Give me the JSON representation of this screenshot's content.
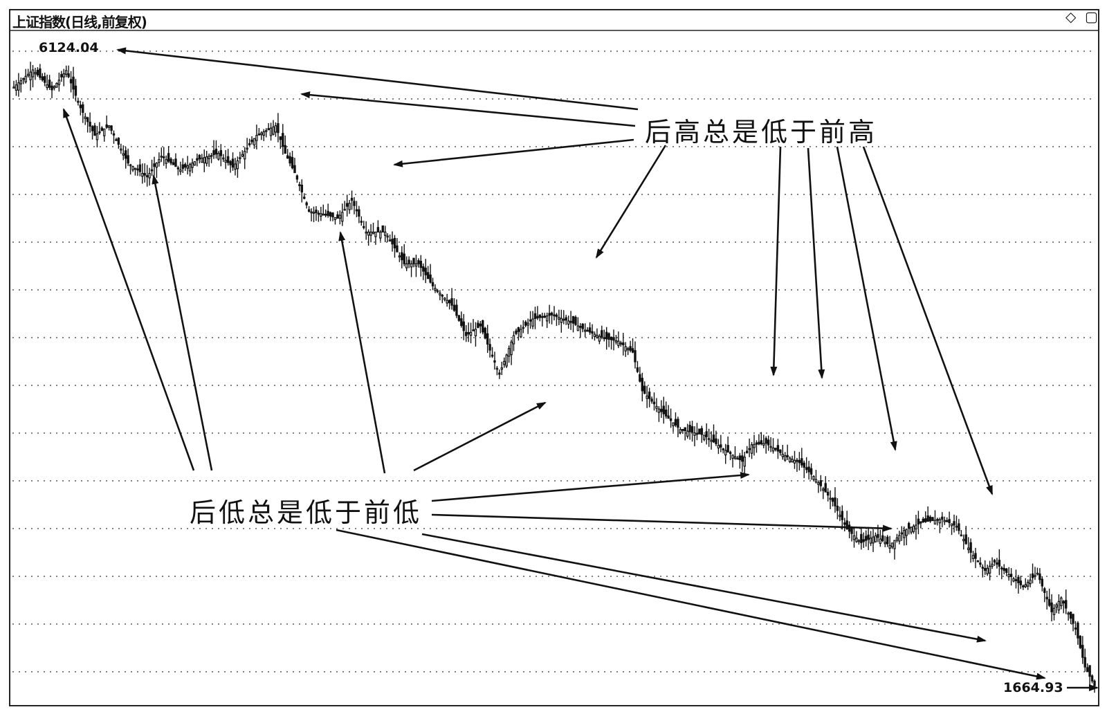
{
  "header": {
    "title": "上证指数(日线,前复权)",
    "diamond_icon": "◇",
    "window_icon": "▢"
  },
  "annotations": {
    "highs_text": "后高总是低于前高",
    "lows_text": "后低总是低于前低"
  },
  "chart_data": {
    "type": "candlestick",
    "title": "上证指数(日线,前复权)",
    "xlabel": "",
    "ylabel": "",
    "ylim": [
      1560,
      6400
    ],
    "grid": true,
    "max_label": "6124.04",
    "min_label": "1664.93",
    "series": [
      {
        "anchors": [
          [
            0,
            6000
          ],
          [
            8,
            6124.04
          ],
          [
            16,
            5980
          ],
          [
            22,
            6120
          ],
          [
            28,
            5850
          ],
          [
            34,
            5650
          ],
          [
            40,
            5720
          ],
          [
            48,
            5450
          ],
          [
            56,
            5350
          ],
          [
            62,
            5500
          ],
          [
            70,
            5400
          ],
          [
            78,
            5480
          ],
          [
            86,
            5520
          ],
          [
            92,
            5420
          ],
          [
            102,
            5650
          ],
          [
            110,
            5720
          ],
          [
            114,
            5520
          ],
          [
            118,
            5380
          ],
          [
            124,
            5100
          ],
          [
            130,
            5080
          ],
          [
            136,
            5050
          ],
          [
            142,
            5180
          ],
          [
            148,
            4950
          ],
          [
            156,
            4950
          ],
          [
            164,
            4720
          ],
          [
            170,
            4720
          ],
          [
            176,
            4560
          ],
          [
            184,
            4420
          ],
          [
            190,
            4200
          ],
          [
            196,
            4270
          ],
          [
            204,
            3920
          ],
          [
            210,
            4200
          ],
          [
            218,
            4320
          ],
          [
            226,
            4350
          ],
          [
            234,
            4300
          ],
          [
            240,
            4240
          ],
          [
            248,
            4180
          ],
          [
            254,
            4160
          ],
          [
            260,
            4080
          ],
          [
            264,
            3800
          ],
          [
            272,
            3650
          ],
          [
            280,
            3520
          ],
          [
            290,
            3480
          ],
          [
            298,
            3380
          ],
          [
            306,
            3290
          ],
          [
            310,
            3410
          ],
          [
            316,
            3420
          ],
          [
            324,
            3330
          ],
          [
            330,
            3280
          ],
          [
            336,
            3180
          ],
          [
            344,
            3000
          ],
          [
            350,
            2800
          ],
          [
            356,
            2700
          ],
          [
            362,
            2750
          ],
          [
            368,
            2680
          ],
          [
            374,
            2790
          ],
          [
            382,
            2850
          ],
          [
            390,
            2870
          ],
          [
            396,
            2820
          ],
          [
            402,
            2630
          ],
          [
            408,
            2500
          ],
          [
            412,
            2560
          ],
          [
            418,
            2470
          ],
          [
            424,
            2380
          ],
          [
            430,
            2480
          ],
          [
            436,
            2200
          ],
          [
            440,
            2300
          ],
          [
            446,
            2080
          ],
          [
            450,
            1800
          ],
          [
            454,
            1664.93
          ]
        ]
      }
    ]
  }
}
